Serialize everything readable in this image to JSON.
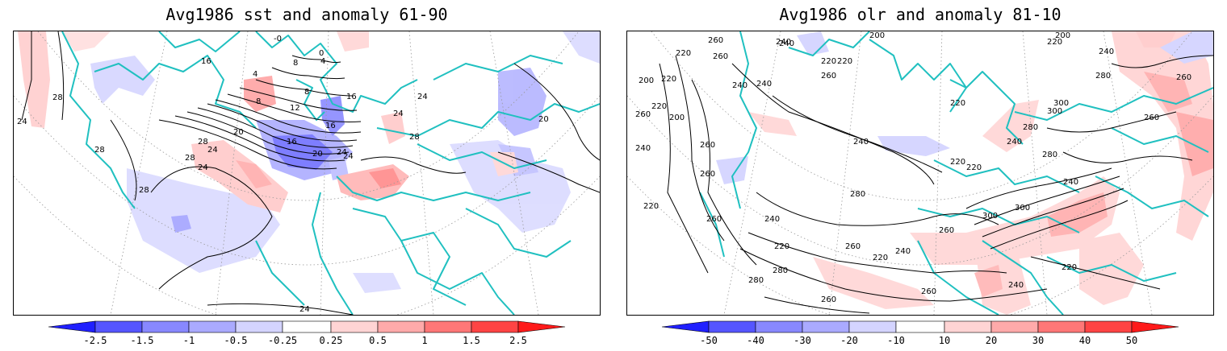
{
  "panels": [
    {
      "title": "Avg1986 sst and anomaly 61-90",
      "contour_labels": [
        "24",
        "28",
        "28",
        "28",
        "28",
        "24",
        "24",
        "28",
        "16",
        "20",
        "24",
        "20",
        "16",
        "12",
        "8",
        "8",
        "4",
        "0",
        "-0",
        "4",
        "8",
        "16",
        "16",
        "24",
        "24",
        "28",
        "24",
        "24",
        "20"
      ],
      "colorbar": {
        "labels": [
          "-2.5",
          "-1.5",
          "-1",
          "-0.5",
          "-0.25",
          "0.25",
          "0.5",
          "1",
          "1.5",
          "2.5"
        ],
        "colors": [
          "#2020ff",
          "#5555ff",
          "#8888ff",
          "#aaaaff",
          "#d4d4ff",
          "#ffffff",
          "#ffd4d4",
          "#ffaaaa",
          "#ff7777",
          "#ff4444",
          "#ff1a1a"
        ]
      }
    },
    {
      "title": "Avg1986 olr and anomaly 81-10",
      "contour_labels": [
        "260",
        "240",
        "220",
        "260",
        "200",
        "220",
        "240",
        "240",
        "220",
        "200",
        "220",
        "260",
        "240",
        "260",
        "220",
        "200",
        "240",
        "220",
        "260",
        "300",
        "300",
        "280",
        "240",
        "220",
        "200",
        "240",
        "220",
        "260",
        "280",
        "260",
        "240",
        "220",
        "220",
        "260",
        "280",
        "300",
        "300",
        "240",
        "220",
        "260",
        "260",
        "280",
        "260",
        "240",
        "220",
        "220",
        "240",
        "280",
        "260",
        "260",
        "280",
        "240"
      ],
      "colorbar": {
        "labels": [
          "-50",
          "-40",
          "-30",
          "-20",
          "-10",
          "10",
          "20",
          "30",
          "40",
          "50"
        ],
        "colors": [
          "#2020ff",
          "#5555ff",
          "#8888ff",
          "#aaaaff",
          "#d4d4ff",
          "#ffffff",
          "#ffd4d4",
          "#ffaaaa",
          "#ff7777",
          "#ff4444",
          "#ff1a1a"
        ]
      }
    }
  ]
}
